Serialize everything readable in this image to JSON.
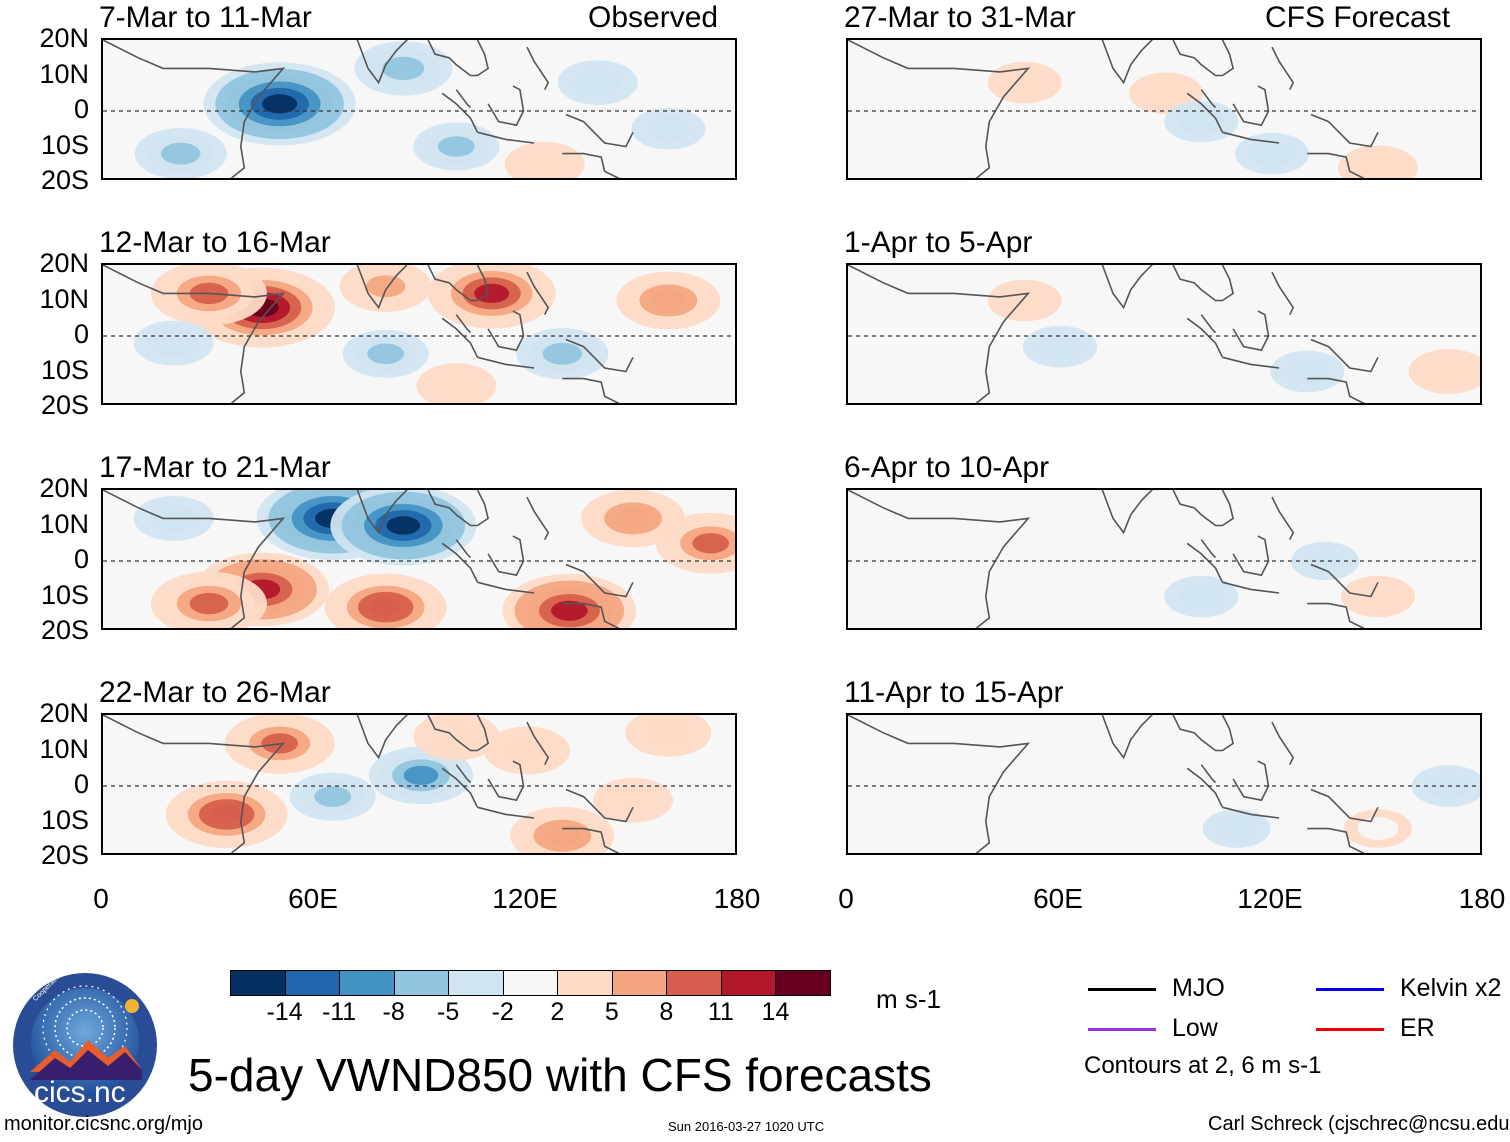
{
  "figure": {
    "title": "5-day VWND850 with CFS forecasts",
    "url": "monitor.cicsnc.org/mjo",
    "timestamp": "Sun 2016-03-27 1020 UTC",
    "author": "Carl Schreck (cjschrec@ncsu.edu)",
    "units": "m s-1",
    "logo_text": "cics.nc",
    "logo_ring_text": "Cooperative Institute for Climate and Satellites",
    "contour_note": "Contours at 2, 6 m s-1"
  },
  "columns": {
    "left_label": "Observed",
    "right_label": "CFS Forecast"
  },
  "colorbar": {
    "colors": [
      "#053061",
      "#2166ac",
      "#4393c3",
      "#92c5de",
      "#d1e5f0",
      "#f7f7f7",
      "#fddbc7",
      "#f4a582",
      "#d6604d",
      "#b2182b",
      "#67001f"
    ],
    "labels": [
      "-14",
      "-11",
      "-8",
      "-5",
      "-2",
      "2",
      "5",
      "8",
      "11",
      "14"
    ]
  },
  "legend": [
    {
      "label": "MJO",
      "color": "#000000"
    },
    {
      "label": "Kelvin x2",
      "color": "#0000ee"
    },
    {
      "label": "Low",
      "color": "#9933dd"
    },
    {
      "label": "ER",
      "color": "#ee0000"
    }
  ],
  "chart_data": {
    "type": "heatmap",
    "variable": "VWND850",
    "xlim": [
      0,
      180
    ],
    "ylim": [
      -20,
      20
    ],
    "x_ticks": [
      "0",
      "60E",
      "120E",
      "180"
    ],
    "y_ticks": [
      "20N",
      "10N",
      "0",
      "10S",
      "20S"
    ],
    "panels": [
      {
        "title": "7-Mar to 11-Mar",
        "source": "Observed",
        "features": [
          {
            "lon": 50,
            "lat": 2,
            "v": -16
          },
          {
            "lon": 22,
            "lat": -12,
            "v": -6
          },
          {
            "lon": 85,
            "lat": 12,
            "v": -7
          },
          {
            "lon": 100,
            "lat": -10,
            "v": -5
          },
          {
            "lon": 140,
            "lat": 8,
            "v": -4
          },
          {
            "lon": 125,
            "lat": -15,
            "v": 4
          },
          {
            "lon": 160,
            "lat": -5,
            "v": -3
          }
        ]
      },
      {
        "title": "12-Mar to 16-Mar",
        "source": "Observed",
        "features": [
          {
            "lon": 45,
            "lat": 8,
            "v": 15
          },
          {
            "lon": 30,
            "lat": 12,
            "v": 10
          },
          {
            "lon": 110,
            "lat": 12,
            "v": 12
          },
          {
            "lon": 160,
            "lat": 10,
            "v": 8
          },
          {
            "lon": 80,
            "lat": 14,
            "v": 6
          },
          {
            "lon": 130,
            "lat": -5,
            "v": -6
          },
          {
            "lon": 80,
            "lat": -5,
            "v": -5
          },
          {
            "lon": 20,
            "lat": -2,
            "v": -4
          },
          {
            "lon": 100,
            "lat": -14,
            "v": 4
          }
        ]
      },
      {
        "title": "17-Mar to 21-Mar",
        "source": "Observed",
        "features": [
          {
            "lon": 65,
            "lat": 12,
            "v": -16
          },
          {
            "lon": 85,
            "lat": 10,
            "v": -15
          },
          {
            "lon": 45,
            "lat": -8,
            "v": 13
          },
          {
            "lon": 30,
            "lat": -12,
            "v": 10
          },
          {
            "lon": 80,
            "lat": -13,
            "v": 11
          },
          {
            "lon": 132,
            "lat": -14,
            "v": 13
          },
          {
            "lon": 150,
            "lat": 12,
            "v": 8
          },
          {
            "lon": 172,
            "lat": 5,
            "v": 9
          },
          {
            "lon": 20,
            "lat": 12,
            "v": -4
          }
        ]
      },
      {
        "title": "22-Mar to 26-Mar",
        "source": "Observed",
        "features": [
          {
            "lon": 35,
            "lat": -8,
            "v": 11
          },
          {
            "lon": 50,
            "lat": 12,
            "v": 9
          },
          {
            "lon": 90,
            "lat": 3,
            "v": -8
          },
          {
            "lon": 65,
            "lat": -3,
            "v": -5
          },
          {
            "lon": 130,
            "lat": -14,
            "v": 8
          },
          {
            "lon": 120,
            "lat": 10,
            "v": 5
          },
          {
            "lon": 160,
            "lat": 15,
            "v": 5
          },
          {
            "lon": 100,
            "lat": 14,
            "v": 5
          },
          {
            "lon": 150,
            "lat": -4,
            "v": 4
          }
        ]
      },
      {
        "title": "27-Mar to 31-Mar",
        "source": "CFS Forecast",
        "features": [
          {
            "lon": 120,
            "lat": -12,
            "v": -3
          },
          {
            "lon": 150,
            "lat": -16,
            "v": 4
          },
          {
            "lon": 90,
            "lat": 5,
            "v": 3
          },
          {
            "lon": 50,
            "lat": 8,
            "v": 3
          },
          {
            "lon": 100,
            "lat": -3,
            "v": -3
          }
        ]
      },
      {
        "title": "1-Apr to 5-Apr",
        "source": "CFS Forecast",
        "features": [
          {
            "lon": 50,
            "lat": 10,
            "v": 3
          },
          {
            "lon": 170,
            "lat": -10,
            "v": 4
          },
          {
            "lon": 60,
            "lat": -3,
            "v": -3
          },
          {
            "lon": 130,
            "lat": -10,
            "v": -3
          }
        ]
      },
      {
        "title": "6-Apr to 10-Apr",
        "source": "CFS Forecast",
        "features": [
          {
            "lon": 100,
            "lat": -10,
            "v": -3
          },
          {
            "lon": 150,
            "lat": -10,
            "v": 3
          },
          {
            "lon": 135,
            "lat": 0,
            "v": -2
          }
        ]
      },
      {
        "title": "11-Apr to 15-Apr",
        "source": "CFS Forecast",
        "features": [
          {
            "lon": 170,
            "lat": 0,
            "v": -3
          },
          {
            "lon": 110,
            "lat": -12,
            "v": -2
          },
          {
            "lon": 150,
            "lat": -12,
            "v": 2
          }
        ]
      }
    ]
  }
}
